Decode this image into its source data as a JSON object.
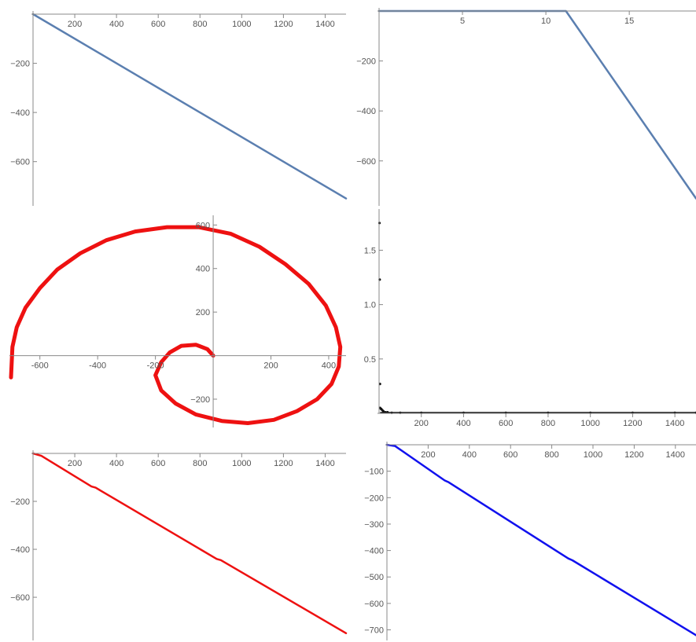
{
  "chart_data": [
    {
      "type": "line",
      "color": "#5b7fb0",
      "xlim": [
        0,
        1500
      ],
      "ylim": [
        -780,
        0
      ],
      "x_ticks": [
        200,
        400,
        600,
        800,
        1000,
        1200,
        1400
      ],
      "x_tick_labels": [
        "200",
        "400",
        "600",
        "800",
        "1000",
        "1200",
        "1400"
      ],
      "y_ticks": [
        -200,
        -400,
        -600
      ],
      "y_tick_labels": [
        "-200",
        "-400",
        "-600"
      ],
      "x": [
        0,
        1500
      ],
      "y": [
        0,
        -750
      ]
    },
    {
      "type": "line",
      "color": "#5b7fb0",
      "xlim": [
        0,
        19
      ],
      "ylim": [
        -780,
        0
      ],
      "x_ticks": [
        5,
        10,
        15
      ],
      "x_tick_labels": [
        "5",
        "10",
        "15"
      ],
      "y_ticks": [
        -200,
        -400,
        -600
      ],
      "y_tick_labels": [
        "-200",
        "-400",
        "-600"
      ],
      "x": [
        0,
        9.6,
        10.9,
        11.2,
        19
      ],
      "y": [
        0,
        0,
        0,
        0,
        -750
      ]
    },
    {
      "type": "line",
      "color": "#ee1111",
      "xlim": [
        -700,
        460
      ],
      "ylim": [
        -330,
        630
      ],
      "x_ticks": [
        -600,
        -400,
        -200,
        200,
        400
      ],
      "x_tick_labels": [
        "-600",
        "-400",
        "-200",
        "200",
        "400"
      ],
      "y_ticks": [
        600,
        400,
        200,
        -200
      ],
      "y_tick_labels": [
        "600",
        "400",
        "200",
        "-200"
      ],
      "x": [
        0,
        -20,
        -60,
        -110,
        -150,
        -180,
        -200,
        -180,
        -130,
        -60,
        30,
        120,
        210,
        290,
        360,
        410,
        435,
        440,
        425,
        390,
        330,
        250,
        160,
        60,
        -50,
        -160,
        -270,
        -370,
        -460,
        -540,
        -600,
        -650,
        -680,
        -695,
        -700
      ],
      "y": [
        0,
        30,
        50,
        45,
        15,
        -30,
        -90,
        -160,
        -220,
        -270,
        -300,
        -310,
        -295,
        -255,
        -200,
        -130,
        -50,
        40,
        130,
        230,
        330,
        420,
        500,
        560,
        590,
        590,
        570,
        530,
        470,
        395,
        310,
        220,
        130,
        40,
        -100
      ]
    },
    {
      "type": "scatter",
      "color": "#111111",
      "xlim": [
        0,
        1500
      ],
      "ylim": [
        0,
        1.85
      ],
      "x_ticks": [
        200,
        400,
        600,
        800,
        1000,
        1200,
        1400
      ],
      "x_tick_labels": [
        "200",
        "400",
        "600",
        "800",
        "1000",
        "1200",
        "1400"
      ],
      "y_ticks": [
        1.5,
        1.0,
        0.5
      ],
      "y_tick_labels": [
        "1.5",
        "1.0",
        "0.5"
      ],
      "x": [
        2,
        3,
        4,
        5,
        10,
        15,
        20,
        30,
        40,
        60,
        100,
        200,
        400,
        600,
        800,
        1000,
        1200,
        1400,
        1500
      ],
      "y": [
        1.75,
        1.23,
        0.27,
        0.05,
        0.04,
        0.03,
        0.02,
        0.01,
        0.01,
        0.005,
        0.005,
        0.005,
        0.005,
        0.005,
        0.005,
        0.005,
        0.005,
        0.005,
        0.005
      ]
    },
    {
      "type": "line",
      "color": "#ee1111",
      "xlim": [
        0,
        1500
      ],
      "ylim": [
        -780,
        0
      ],
      "x_ticks": [
        200,
        400,
        600,
        800,
        1000,
        1200,
        1400
      ],
      "x_tick_labels": [
        "200",
        "400",
        "600",
        "800",
        "1000",
        "1200",
        "1400"
      ],
      "y_ticks": [
        -200,
        -400,
        -600
      ],
      "y_tick_labels": [
        "-200",
        "-400",
        "-600"
      ],
      "x": [
        0,
        40,
        280,
        300,
        880,
        900,
        1500
      ],
      "y": [
        0,
        -10,
        -138,
        -143,
        -440,
        -445,
        -750
      ]
    },
    {
      "type": "line",
      "color": "#1111ee",
      "xlim": [
        0,
        1500
      ],
      "ylim": [
        -740,
        0
      ],
      "x_ticks": [
        200,
        400,
        600,
        800,
        1000,
        1200,
        1400
      ],
      "x_tick_labels": [
        "200",
        "400",
        "600",
        "800",
        "1000",
        "1200",
        "1400"
      ],
      "y_ticks": [
        -100,
        -200,
        -300,
        -400,
        -500,
        -600,
        -700
      ],
      "y_tick_labels": [
        "-100",
        "-200",
        "-300",
        "-400",
        "-500",
        "-600",
        "-700"
      ],
      "x": [
        0,
        40,
        280,
        300,
        880,
        900,
        1500
      ],
      "y": [
        0,
        -5,
        -135,
        -142,
        -430,
        -437,
        -720
      ]
    }
  ]
}
